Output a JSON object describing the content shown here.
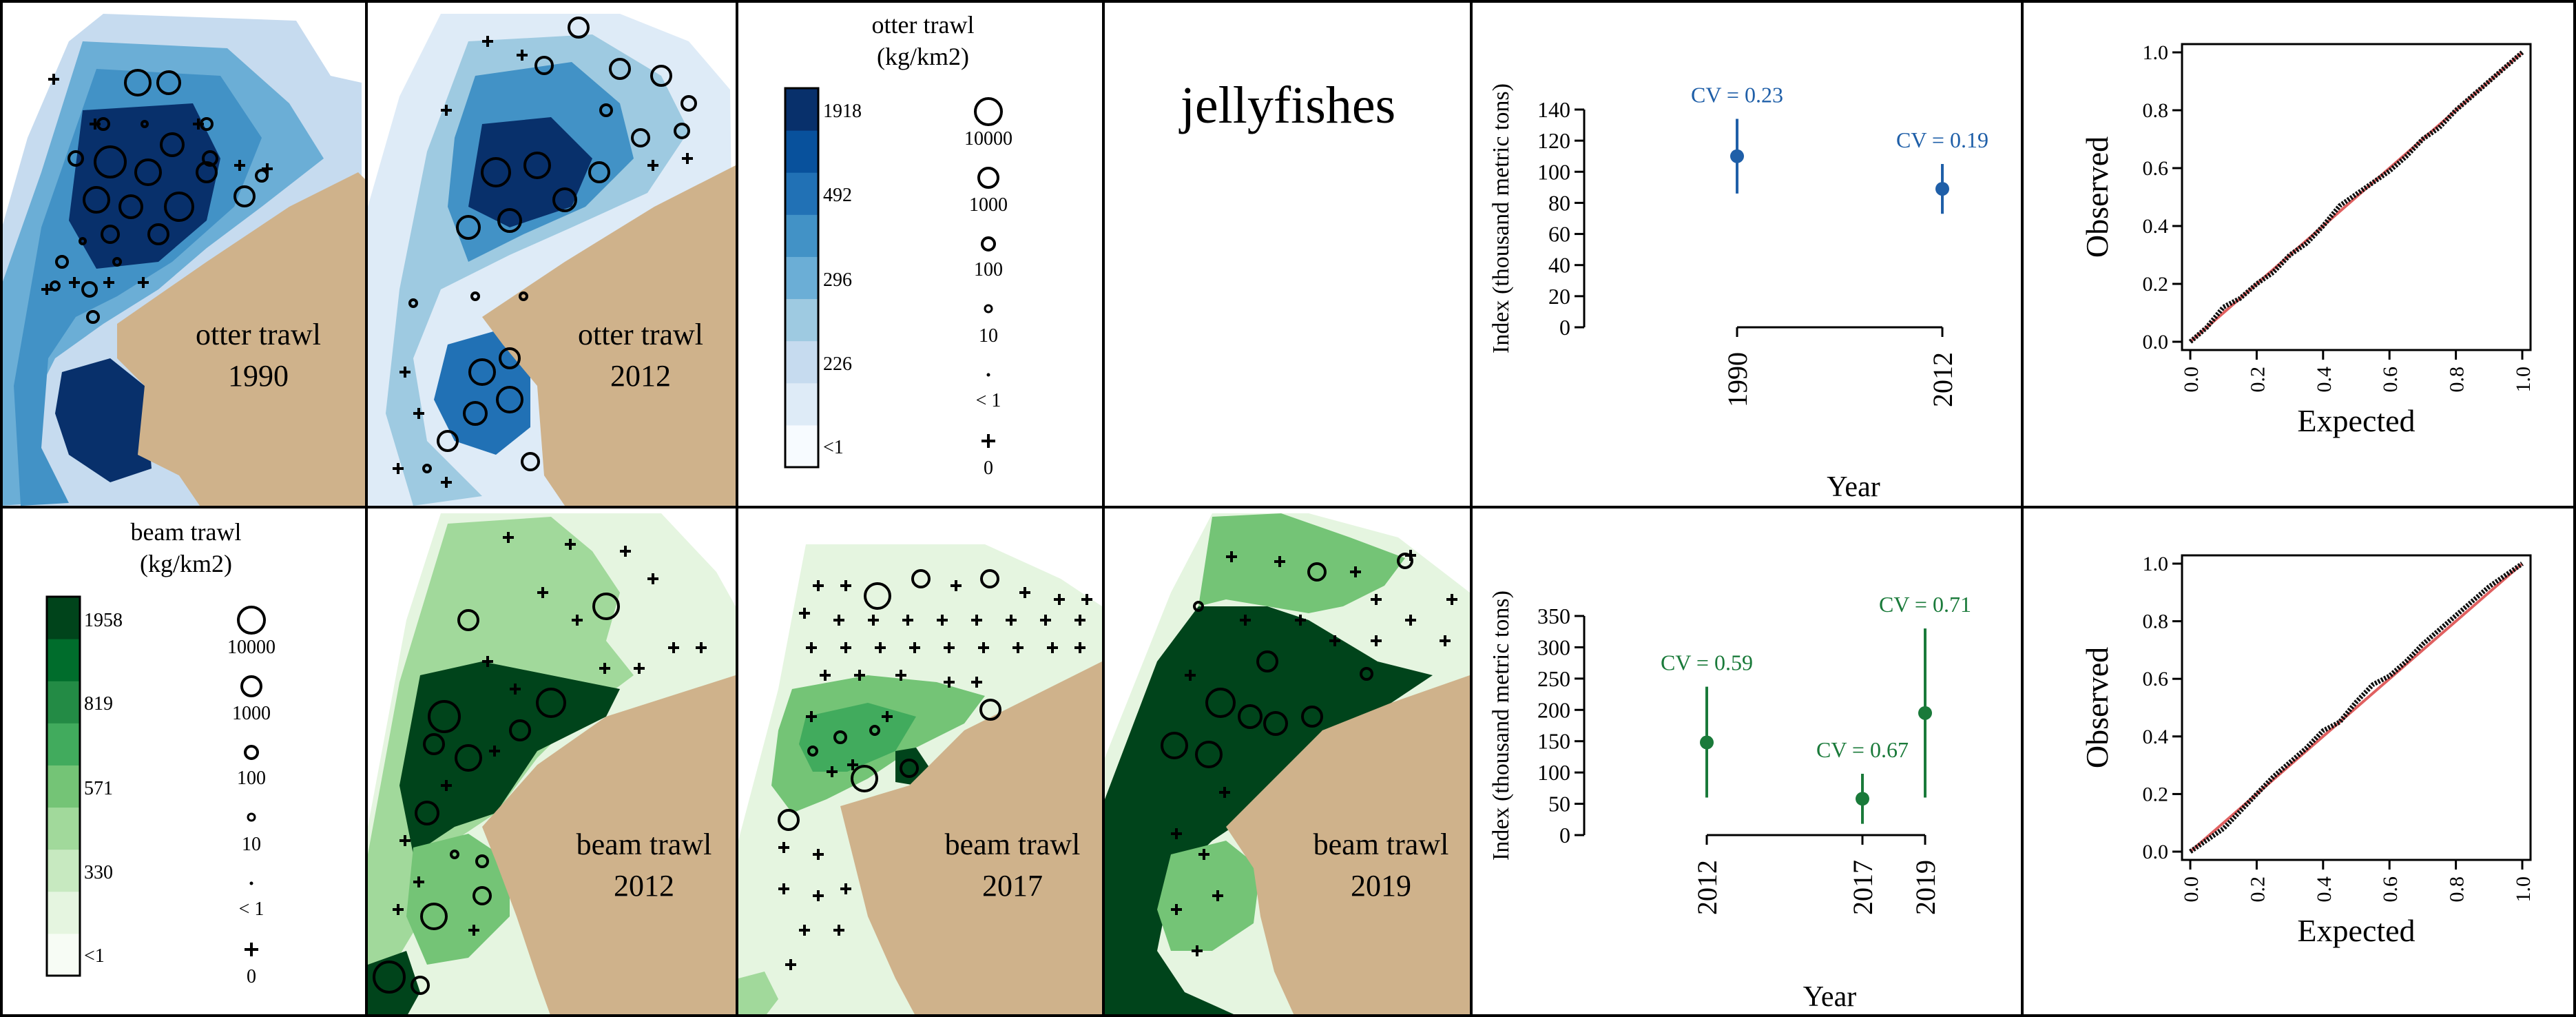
{
  "title": "jellyfishes",
  "colors": {
    "land": "#cfb28b",
    "otter_scale": [
      "#f7fbff",
      "#deebf7",
      "#c6dbef",
      "#9ecae1",
      "#6baed6",
      "#4292c6",
      "#2171b5",
      "#08519c",
      "#08306b"
    ],
    "beam_scale": [
      "#f7fcf5",
      "#e5f5e0",
      "#c7e9c0",
      "#a1d99b",
      "#74c476",
      "#41ab5d",
      "#238b45",
      "#006d2c",
      "#00441b"
    ],
    "otter_point": "#1f5fa8",
    "beam_point": "#1a7a3a",
    "qq_line": "#e06060"
  },
  "legends": {
    "otter": {
      "title_line1": "otter trawl",
      "title_line2": "(kg/km2)",
      "color_ticks": [
        "1918",
        "492",
        "296",
        "226",
        "<1"
      ],
      "size_labels": [
        "10000",
        "1000",
        "100",
        "10",
        "< 1",
        "0"
      ]
    },
    "beam": {
      "title_line1": "beam trawl",
      "title_line2": "(kg/km2)",
      "color_ticks": [
        "1958",
        "819",
        "571",
        "330",
        "<1"
      ],
      "size_labels": [
        "10000",
        "1000",
        "100",
        "10",
        "< 1",
        "0"
      ]
    }
  },
  "maps": [
    {
      "gear": "otter trawl",
      "year": "1990"
    },
    {
      "gear": "otter trawl",
      "year": "2012"
    },
    {
      "gear": "beam trawl",
      "year": "2012"
    },
    {
      "gear": "beam trawl",
      "year": "2017"
    },
    {
      "gear": "beam trawl",
      "year": "2019"
    }
  ],
  "chart_data": [
    {
      "type": "scatter",
      "title": "",
      "xlabel": "Year",
      "ylabel": "Index (thousand metric tons)",
      "x": [
        1990,
        2012
      ],
      "y": [
        110,
        89
      ],
      "lower": [
        86,
        73
      ],
      "upper": [
        134,
        105
      ],
      "point_labels": [
        "CV = 0.23",
        "CV = 0.19"
      ],
      "yticks": [
        0,
        20,
        40,
        60,
        80,
        100,
        120,
        140
      ],
      "ylim": [
        0,
        140
      ],
      "xticks": [
        "1990",
        "2012"
      ]
    },
    {
      "type": "scatter",
      "title": "",
      "xlabel": "Year",
      "ylabel": "Index (thousand metric tons)",
      "x": [
        2012,
        2017,
        2019
      ],
      "y": [
        148,
        58,
        195
      ],
      "lower": [
        60,
        18,
        60
      ],
      "upper": [
        237,
        98,
        330
      ],
      "point_labels": [
        "CV = 0.59",
        "CV = 0.67",
        "CV = 0.71"
      ],
      "yticks": [
        0,
        50,
        100,
        150,
        200,
        250,
        300,
        350
      ],
      "ylim": [
        0,
        350
      ],
      "xticks": [
        "2012",
        "2017",
        "2019"
      ]
    },
    {
      "type": "line",
      "title": "",
      "xlabel": "Expected",
      "ylabel": "Observed",
      "xlim": [
        0,
        1
      ],
      "ylim": [
        0,
        1
      ],
      "xticks": [
        "0.0",
        "0.2",
        "0.4",
        "0.6",
        "0.8",
        "1.0"
      ],
      "yticks": [
        "0.0",
        "0.2",
        "0.4",
        "0.6",
        "0.8",
        "1.0"
      ],
      "series": [
        {
          "values": [
            [
              0.0,
              0.0
            ],
            [
              0.05,
              0.05
            ],
            [
              0.1,
              0.12
            ],
            [
              0.15,
              0.15
            ],
            [
              0.2,
              0.2
            ],
            [
              0.25,
              0.24
            ],
            [
              0.3,
              0.3
            ],
            [
              0.35,
              0.34
            ],
            [
              0.4,
              0.4
            ],
            [
              0.45,
              0.47
            ],
            [
              0.5,
              0.51
            ],
            [
              0.55,
              0.55
            ],
            [
              0.6,
              0.59
            ],
            [
              0.65,
              0.64
            ],
            [
              0.7,
              0.7
            ],
            [
              0.75,
              0.74
            ],
            [
              0.8,
              0.8
            ],
            [
              0.85,
              0.85
            ],
            [
              0.9,
              0.9
            ],
            [
              0.95,
              0.95
            ],
            [
              1.0,
              1.0
            ]
          ]
        },
        {
          "values": [
            [
              0,
              0
            ],
            [
              1,
              1
            ]
          ]
        }
      ]
    },
    {
      "type": "line",
      "title": "",
      "xlabel": "Expected",
      "ylabel": "Observed",
      "xlim": [
        0,
        1
      ],
      "ylim": [
        0,
        1
      ],
      "xticks": [
        "0.0",
        "0.2",
        "0.4",
        "0.6",
        "0.8",
        "1.0"
      ],
      "yticks": [
        "0.0",
        "0.2",
        "0.4",
        "0.6",
        "0.8",
        "1.0"
      ],
      "series": [
        {
          "values": [
            [
              0.0,
              0.0
            ],
            [
              0.05,
              0.04
            ],
            [
              0.1,
              0.08
            ],
            [
              0.15,
              0.14
            ],
            [
              0.2,
              0.2
            ],
            [
              0.25,
              0.26
            ],
            [
              0.3,
              0.31
            ],
            [
              0.35,
              0.36
            ],
            [
              0.4,
              0.42
            ],
            [
              0.45,
              0.45
            ],
            [
              0.5,
              0.52
            ],
            [
              0.55,
              0.58
            ],
            [
              0.6,
              0.61
            ],
            [
              0.65,
              0.66
            ],
            [
              0.7,
              0.72
            ],
            [
              0.75,
              0.77
            ],
            [
              0.8,
              0.82
            ],
            [
              0.85,
              0.87
            ],
            [
              0.9,
              0.92
            ],
            [
              0.95,
              0.96
            ],
            [
              1.0,
              1.0
            ]
          ]
        },
        {
          "values": [
            [
              0,
              0
            ],
            [
              1,
              1
            ]
          ]
        }
      ]
    }
  ]
}
